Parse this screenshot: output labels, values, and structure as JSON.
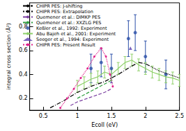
{
  "chart_data": {
    "type": "line",
    "xlabel": "Ecoll (eV)",
    "ylabel": "integral cross section (Å²)",
    "xlim": [
      0.3,
      2.5
    ],
    "xticks": [
      0.5,
      1,
      1.5,
      2,
      2.5
    ],
    "ylim": [
      0.1,
      1.0
    ],
    "yticks": [
      0.2,
      0.4,
      0.6,
      0.8
    ],
    "grid": false,
    "legend": "upper left",
    "series": [
      {
        "name": "CHIPR PES: J-shifting",
        "type": "line",
        "color": "#000000",
        "line_style": "dash-dot",
        "marker": "none",
        "x": [
          0.6,
          0.8,
          1.0,
          1.2,
          1.4,
          1.6,
          1.8,
          1.9,
          2.0,
          2.1
        ],
        "values": [
          0.12,
          0.18,
          0.25,
          0.3,
          0.34,
          0.4,
          0.47,
          0.5,
          0.49,
          0.46
        ]
      },
      {
        "name": "CHIPR PES: Extrapolation",
        "type": "line",
        "color": "#000000",
        "line_style": "dotted",
        "marker": "none",
        "x": [
          2.1,
          2.2,
          2.3,
          2.4,
          2.5
        ],
        "values": [
          0.46,
          0.43,
          0.41,
          0.39,
          0.37
        ]
      },
      {
        "name": "Quemener et al.: DIMKP PES",
        "type": "line",
        "color": "#7b3fa0",
        "line_style": "dashed",
        "marker": "none",
        "x": [
          0.9,
          1.0,
          1.1,
          1.2,
          1.3,
          1.4,
          1.5
        ],
        "values": [
          0.14,
          0.17,
          0.19,
          0.21,
          0.23,
          0.25,
          0.28
        ]
      },
      {
        "name": "Quemener et al.: XXZLG PES",
        "type": "line",
        "color": "#2e9e3e",
        "line_style": "dashed",
        "marker": "none",
        "x": [
          1.0,
          1.1,
          1.2,
          1.3,
          1.4,
          1.5
        ],
        "values": [
          0.2,
          0.23,
          0.26,
          0.29,
          0.32,
          0.35
        ]
      },
      {
        "name": "Keßler et al., 1992: Experiment",
        "type": "scatter",
        "color": "#2b4fa8",
        "line_style": "none",
        "marker": "circle",
        "x": [
          1.2,
          1.35,
          1.5,
          1.75,
          1.85,
          2.0,
          2.3
        ],
        "values": [
          0.45,
          0.5,
          0.45,
          0.7,
          0.75,
          0.55,
          0.4
        ],
        "errors": [
          0.12,
          0.12,
          0.12,
          0.15,
          0.15,
          0.13,
          0.12
        ]
      },
      {
        "name": "Abu Bajeh et al., 2001: Experiment",
        "type": "line",
        "color": "#8fd16a",
        "line_style": "solid",
        "marker": "none",
        "x": [
          1.0,
          1.1,
          1.2,
          1.3,
          1.4,
          1.5,
          1.6,
          1.7,
          1.8,
          1.9,
          2.0,
          2.1,
          2.2,
          2.3,
          2.4,
          2.5
        ],
        "values": [
          0.3,
          0.33,
          0.36,
          0.38,
          0.42,
          0.4,
          0.45,
          0.5,
          0.52,
          0.48,
          0.45,
          0.42,
          0.4,
          0.38,
          0.37,
          0.35
        ],
        "errors": [
          0.05,
          0.05,
          0.05,
          0.05,
          0.05,
          0.05,
          0.05,
          0.05,
          0.05,
          0.05,
          0.05,
          0.05,
          0.05,
          0.05,
          0.05,
          0.05
        ]
      },
      {
        "name": "Seeger et al., 1994: Experiment",
        "type": "scatter",
        "color": "#5a3fb0",
        "line_style": "none",
        "marker": "triangle",
        "x": [
          1.78
        ],
        "values": [
          0.62
        ]
      },
      {
        "name": "CHIPR PES: Present Result",
        "type": "line",
        "color": "#e0218a",
        "line_style": "dotted",
        "marker": "circle",
        "x": [
          0.75,
          0.85,
          0.95,
          1.05,
          1.15,
          1.25,
          1.35,
          1.42,
          1.48,
          1.52
        ],
        "values": [
          0.12,
          0.2,
          0.28,
          0.37,
          0.45,
          0.55,
          0.62,
          0.55,
          0.4,
          0.3
        ]
      }
    ]
  }
}
